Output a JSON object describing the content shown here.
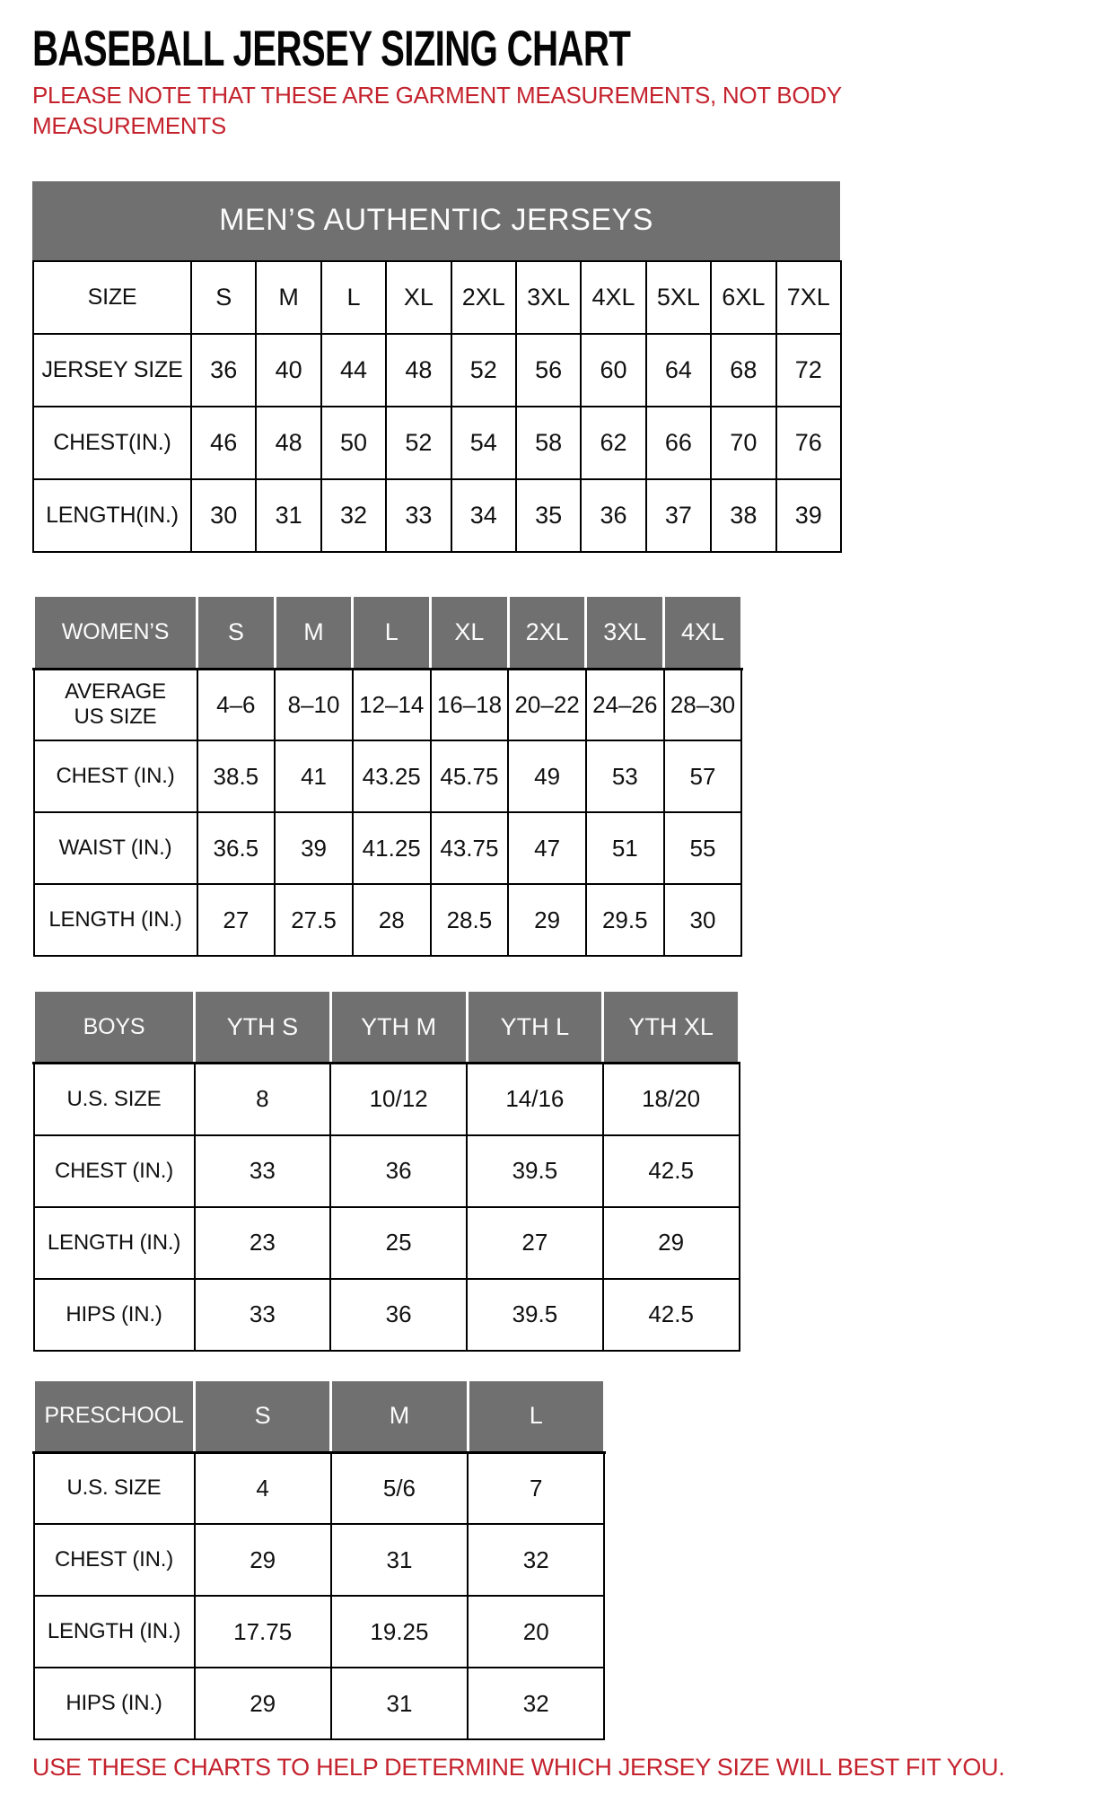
{
  "page": {
    "title": "BASEBALL JERSEY SIZING CHART",
    "note_line1": "PLEASE NOTE THAT THESE ARE GARMENT MEASUREMENTS, NOT BODY",
    "note_line2": "MEASUREMENTS",
    "footer_note": "USE THESE CHARTS TO HELP DETERMINE WHICH JERSEY SIZE WILL BEST FIT YOU.",
    "colors": {
      "accent_red": "#c4232e",
      "header_gray": "#707070",
      "header_text": "#ffffff",
      "border_black": "#000000"
    }
  },
  "mens": {
    "banner": "MEN’S AUTHENTIC JERSEYS",
    "size_label": "SIZE",
    "size_cols": [
      "S",
      "M",
      "L",
      "XL",
      "2XL",
      "3XL",
      "4XL",
      "5XL",
      "6XL",
      "7XL"
    ],
    "rows": [
      {
        "label": "JERSEY SIZE",
        "values": [
          "36",
          "40",
          "44",
          "48",
          "52",
          "56",
          "60",
          "64",
          "68",
          "72"
        ]
      },
      {
        "label": "CHEST(IN.)",
        "values": [
          "46",
          "48",
          "50",
          "52",
          "54",
          "58",
          "62",
          "66",
          "70",
          "76"
        ]
      },
      {
        "label": "LENGTH(IN.)",
        "values": [
          "30",
          "31",
          "32",
          "33",
          "34",
          "35",
          "36",
          "37",
          "38",
          "39"
        ]
      }
    ]
  },
  "womens": {
    "header_label": "WOMEN’S",
    "cols": [
      "S",
      "M",
      "L",
      "XL",
      "2XL",
      "3XL",
      "4XL"
    ],
    "rows": [
      {
        "label": "AVERAGE\nUS SIZE",
        "values": [
          "4–6",
          "8–10",
          "12–14",
          "16–18",
          "20–22",
          "24–26",
          "28–30"
        ]
      },
      {
        "label": "CHEST (IN.)",
        "values": [
          "38.5",
          "41",
          "43.25",
          "45.75",
          "49",
          "53",
          "57"
        ]
      },
      {
        "label": "WAIST (IN.)",
        "values": [
          "36.5",
          "39",
          "41.25",
          "43.75",
          "47",
          "51",
          "55"
        ]
      },
      {
        "label": "LENGTH (IN.)",
        "values": [
          "27",
          "27.5",
          "28",
          "28.5",
          "29",
          "29.5",
          "30"
        ]
      }
    ]
  },
  "boys": {
    "header_label": "BOYS",
    "cols": [
      "YTH S",
      "YTH M",
      "YTH L",
      "YTH XL"
    ],
    "rows": [
      {
        "label": "U.S. SIZE",
        "values": [
          "8",
          "10/12",
          "14/16",
          "18/20"
        ]
      },
      {
        "label": "CHEST (IN.)",
        "values": [
          "33",
          "36",
          "39.5",
          "42.5"
        ]
      },
      {
        "label": "LENGTH (IN.)",
        "values": [
          "23",
          "25",
          "27",
          "29"
        ]
      },
      {
        "label": "HIPS (IN.)",
        "values": [
          "33",
          "36",
          "39.5",
          "42.5"
        ]
      }
    ]
  },
  "preschool": {
    "header_label": "PRESCHOOL",
    "cols": [
      "S",
      "M",
      "L"
    ],
    "rows": [
      {
        "label": "U.S. SIZE",
        "values": [
          "4",
          "5/6",
          "7"
        ]
      },
      {
        "label": "CHEST (IN.)",
        "values": [
          "29",
          "31",
          "32"
        ]
      },
      {
        "label": "LENGTH (IN.)",
        "values": [
          "17.75",
          "19.25",
          "20"
        ]
      },
      {
        "label": "HIPS (IN.)",
        "values": [
          "29",
          "31",
          "32"
        ]
      }
    ]
  }
}
